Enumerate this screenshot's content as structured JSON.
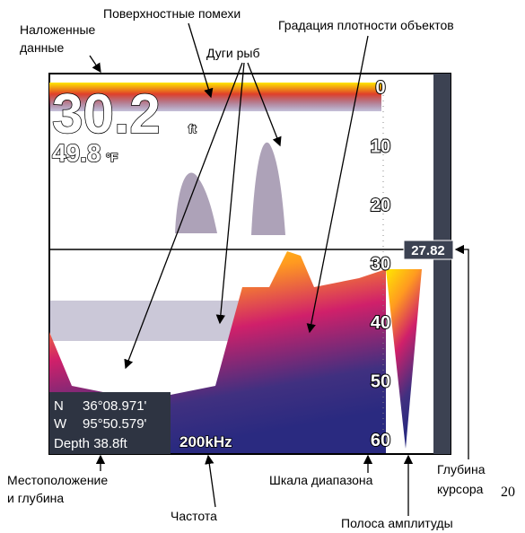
{
  "callouts": {
    "overlay_data": [
      "Наложенные",
      "данные"
    ],
    "surface_clutter": "Поверхностные помехи",
    "density_gradation": "Градация плотности объектов",
    "fish_arches": "Дуги рыб",
    "position_depth": [
      "Местоположение",
      "и глубина"
    ],
    "frequency": "Частота",
    "range_scale": "Шкала диапазона",
    "cursor_depth": [
      "Глубина",
      "курсора"
    ],
    "amplitude_bar": "Полоса амплитуды"
  },
  "screen": {
    "depth": "30.2",
    "depth_unit": "ft",
    "temperature": "49.8",
    "temperature_unit": "°F",
    "depth_scale": [
      0,
      10,
      20,
      30,
      40,
      50,
      60
    ],
    "cursor_depth": "27.82",
    "position": {
      "lat_label": "N",
      "lat": "36°08.971'",
      "lon_label": "W",
      "lon": "95°50.579'",
      "depth": "Depth 38.8ft"
    },
    "frequency": "200kHz"
  },
  "page_number": "20"
}
